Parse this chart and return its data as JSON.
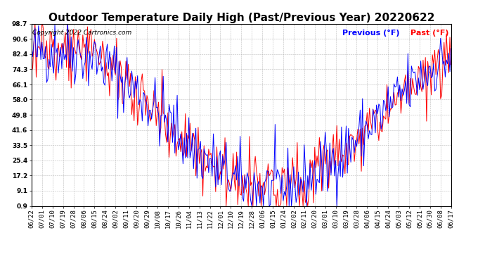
{
  "title": "Outdoor Temperature Daily High (Past/Previous Year) 20220622",
  "copyright": "Copyright 2022 Cartronics.com",
  "legend_prev": "Previous (°F)",
  "legend_past": "Past (°F)",
  "color_prev": "#0000FF",
  "color_past": "#FF0000",
  "yticks": [
    0.9,
    9.1,
    17.2,
    25.4,
    33.5,
    41.6,
    49.8,
    58.0,
    66.1,
    74.3,
    82.4,
    90.6,
    98.7
  ],
  "ylim": [
    0.9,
    98.7
  ],
  "background_color": "#FFFFFF",
  "grid_color": "#AAAAAA",
  "title_fontsize": 11,
  "tick_fontsize": 6.5,
  "copyright_fontsize": 6.5,
  "legend_fontsize": 8
}
